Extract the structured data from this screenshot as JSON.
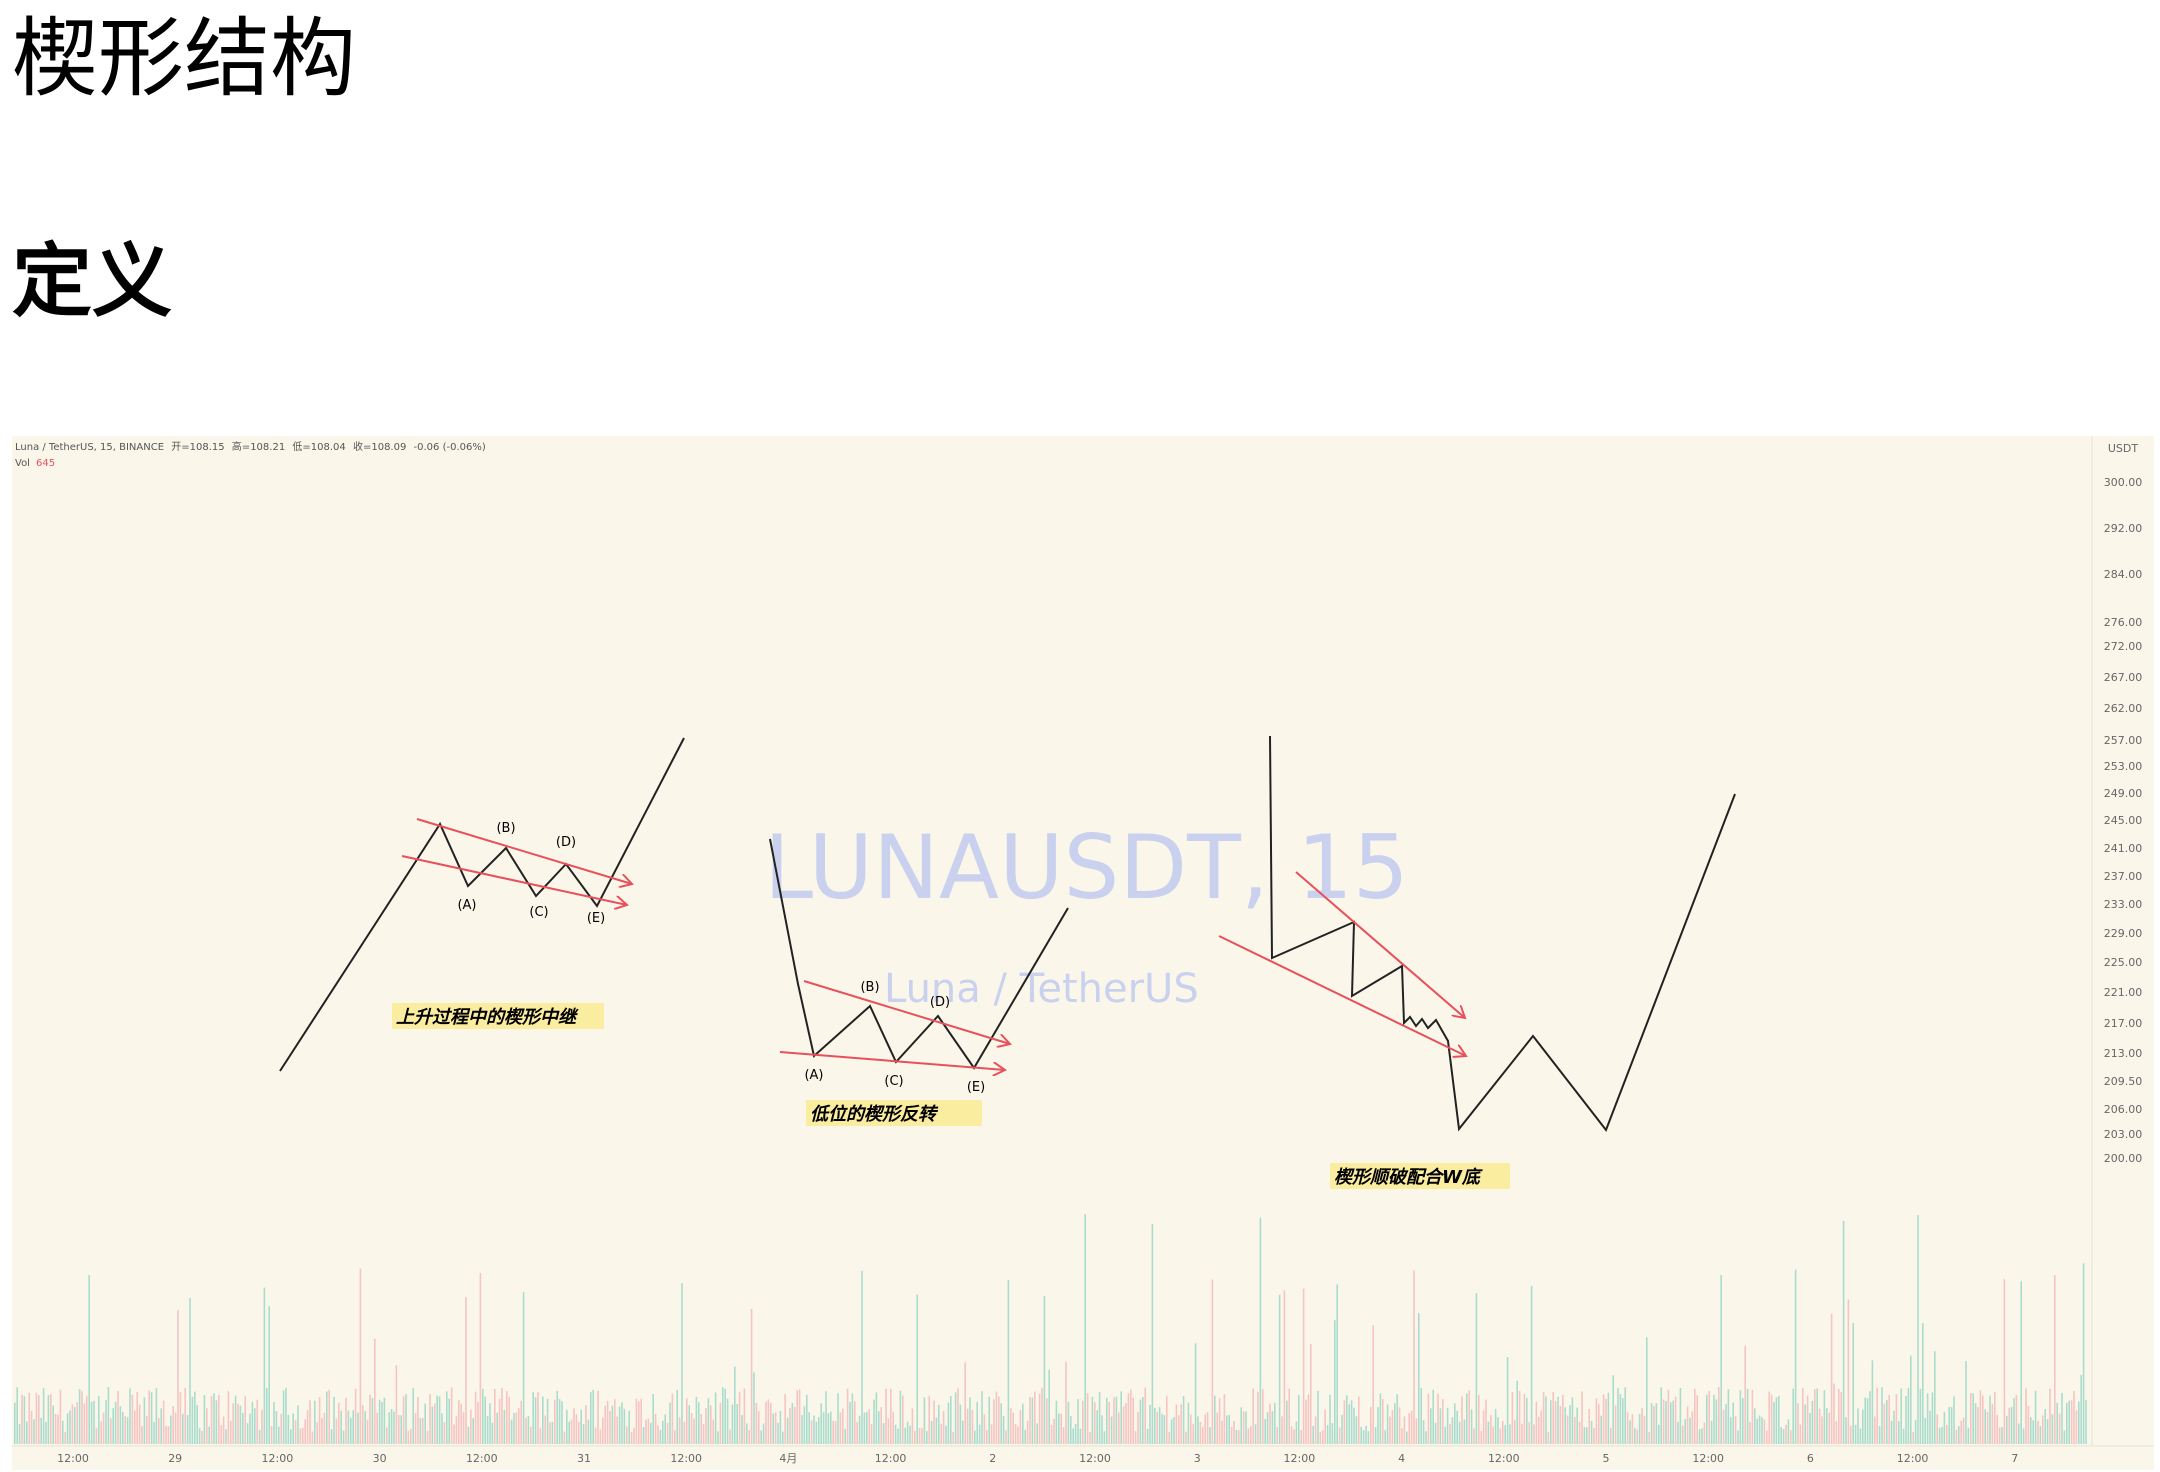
{
  "document": {
    "title": "楔形结构",
    "section_heading": "定义"
  },
  "chart_data": {
    "type": "line",
    "symbol_line": "Luna / TetherUS, 15, BINANCE",
    "ohlc": {
      "open_label": "开",
      "open": "108.15",
      "high_label": "高",
      "high": "108.21",
      "low_label": "低",
      "low": "108.04",
      "close_label": "收",
      "close": "108.09",
      "change": "-0.06 (-0.06%)"
    },
    "volume_label": "Vol",
    "volume_value": "645",
    "watermark_symbol": "LUNAUSDT, 15",
    "watermark_name": "Luna / TetherUS",
    "currency": "USDT",
    "y_ticks": [
      "300.00",
      "292.00",
      "284.00",
      "276.00",
      "272.00",
      "267.00",
      "262.00",
      "257.00",
      "253.00",
      "249.00",
      "245.00",
      "241.00",
      "237.00",
      "233.00",
      "229.00",
      "225.00",
      "221.00",
      "217.00",
      "213.00",
      "209.50",
      "206.00",
      "203.00",
      "200.00"
    ],
    "x_ticks": [
      "12:00",
      "29",
      "12:00",
      "30",
      "12:00",
      "31",
      "12:00",
      "4月",
      "12:00",
      "2",
      "12:00",
      "3",
      "12:00",
      "4",
      "12:00",
      "5",
      "12:00",
      "6",
      "12:00",
      "7"
    ],
    "annotations": [
      {
        "label": "上升过程中的楔形中继",
        "points": [
          "(A)",
          "(B)",
          "(C)",
          "(D)",
          "(E)"
        ]
      },
      {
        "label": "低位的楔形反转",
        "points": [
          "(A)",
          "(B)",
          "(C)",
          "(D)",
          "(E)"
        ]
      },
      {
        "label": "楔形顺破配合W底",
        "points": []
      }
    ],
    "colors": {
      "background": "#faf7ea",
      "trend_line": "#e8505b",
      "path": "#222222",
      "volume_up": "#8fd3c4",
      "volume_down": "#f4b3b3",
      "label_highlight": "#fbeda0",
      "watermark": "#b9c4ef"
    }
  }
}
